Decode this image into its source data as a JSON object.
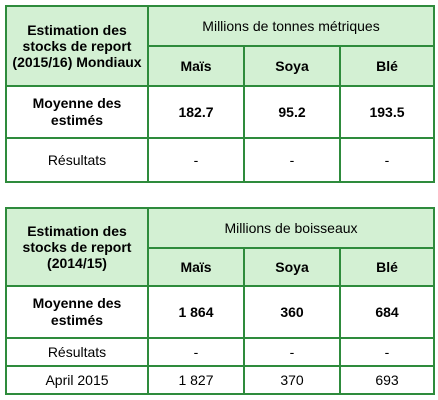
{
  "table1": {
    "header_label": "Estimation des stocks de report (2015/16) Mondiaux",
    "units": "Millions de tonnes métriques",
    "columns": [
      "Maïs",
      "Soya",
      "Blé"
    ],
    "rows": [
      {
        "label": "Moyenne des estimés",
        "values": [
          "182.7",
          "95.2",
          "193.5"
        ]
      },
      {
        "label": "Résultats",
        "values": [
          "-",
          "-",
          "-"
        ]
      }
    ]
  },
  "table2": {
    "header_label": "Estimation des stocks de report (2014/15)",
    "units": "Millions de boisseaux",
    "columns": [
      "Maïs",
      "Soya",
      "Blé"
    ],
    "rows": [
      {
        "label": "Moyenne des estimés",
        "values": [
          "1 864",
          "360",
          "684"
        ]
      },
      {
        "label": "Résultats",
        "values": [
          "-",
          "-",
          "-"
        ]
      },
      {
        "label": "April 2015",
        "values": [
          "1 827",
          "370",
          "693"
        ]
      }
    ]
  },
  "colors": {
    "border": "#2e8b3c",
    "header_fill": "#d3f0d3"
  }
}
